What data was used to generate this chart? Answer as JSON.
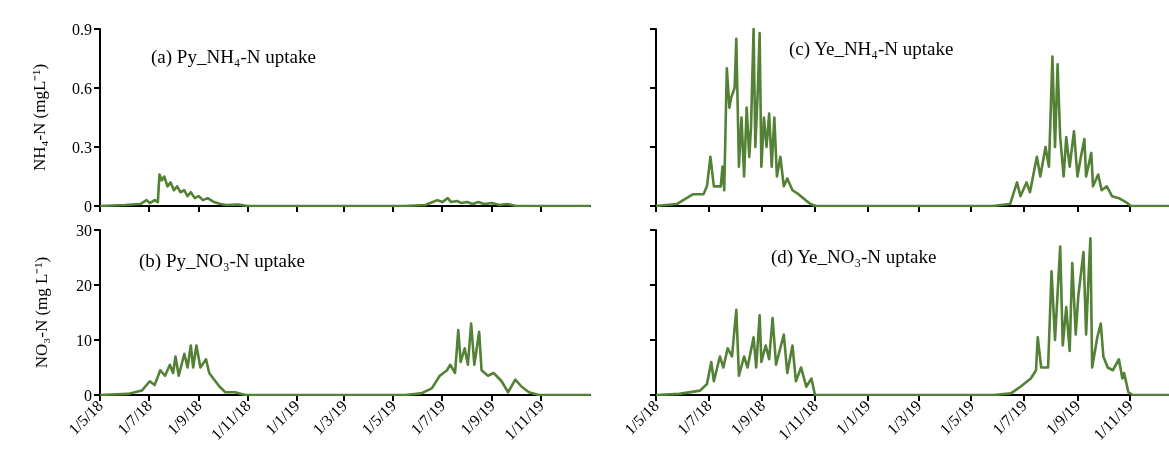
{
  "chart_data": [
    {
      "type": "line",
      "title": "(a) Py_NH₄-N uptake",
      "ylabel": "NH₄-N (mgL⁻¹)",
      "color": "#538135",
      "tick_labels": "y",
      "x": [
        "2018-05-01",
        "2018-06-01",
        "2018-06-20",
        "2018-06-28",
        "2018-07-02",
        "2018-07-08",
        "2018-07-12",
        "2018-07-14",
        "2018-07-17",
        "2018-07-20",
        "2018-07-24",
        "2018-07-28",
        "2018-08-01",
        "2018-08-05",
        "2018-08-09",
        "2018-08-14",
        "2018-08-18",
        "2018-08-22",
        "2018-08-27",
        "2018-09-01",
        "2018-09-06",
        "2018-09-12",
        "2018-09-20",
        "2018-09-28",
        "2018-10-05",
        "2018-10-20",
        "2018-11-01",
        "2019-05-15",
        "2019-06-10",
        "2019-06-25",
        "2019-07-01",
        "2019-07-08",
        "2019-07-12",
        "2019-07-20",
        "2019-07-25",
        "2019-08-01",
        "2019-08-08",
        "2019-08-15",
        "2019-08-22",
        "2019-09-01",
        "2019-09-10",
        "2019-09-20",
        "2019-10-01",
        "2020-01-01"
      ],
      "values": [
        0,
        0.005,
        0.01,
        0.03,
        0.015,
        0.03,
        0.02,
        0.16,
        0.13,
        0.15,
        0.1,
        0.12,
        0.08,
        0.1,
        0.07,
        0.08,
        0.05,
        0.07,
        0.04,
        0.05,
        0.03,
        0.04,
        0.02,
        0.01,
        0.005,
        0.008,
        0,
        0,
        0.005,
        0.03,
        0.02,
        0.04,
        0.02,
        0.025,
        0.015,
        0.02,
        0.01,
        0.02,
        0.01,
        0.015,
        0.005,
        0.01,
        0,
        0
      ],
      "xlim": [
        "2018-05-01",
        "2020-01-01"
      ],
      "xticks": [
        {
          "value": "2018-05-01",
          "label": null
        },
        {
          "value": "2018-07-01",
          "label": null
        },
        {
          "value": "2018-09-01",
          "label": null
        },
        {
          "value": "2018-11-01",
          "label": null
        },
        {
          "value": "2019-01-01",
          "label": null
        },
        {
          "value": "2019-03-01",
          "label": null
        },
        {
          "value": "2019-05-01",
          "label": null
        },
        {
          "value": "2019-07-01",
          "label": null
        },
        {
          "value": "2019-09-01",
          "label": null
        },
        {
          "value": "2019-11-01",
          "label": null
        }
      ],
      "ylim": [
        0,
        0.9
      ],
      "yticks": [
        0,
        0.3,
        0.6,
        0.9
      ]
    },
    {
      "type": "line",
      "title": "(c) Ye_NH₄-N uptake",
      "color": "#538135",
      "tick_labels": false,
      "x": [
        "2018-05-01",
        "2018-05-25",
        "2018-06-13",
        "2018-06-25",
        "2018-06-29",
        "2018-07-03",
        "2018-07-07",
        "2018-07-15",
        "2018-07-17",
        "2018-07-19",
        "2018-07-22",
        "2018-07-25",
        "2018-07-27",
        "2018-07-31",
        "2018-08-02",
        "2018-08-05",
        "2018-08-08",
        "2018-08-11",
        "2018-08-14",
        "2018-08-17",
        "2018-08-19",
        "2018-08-22",
        "2018-08-24",
        "2018-08-27",
        "2018-08-29",
        "2018-08-31",
        "2018-09-03",
        "2018-09-06",
        "2018-09-09",
        "2018-09-12",
        "2018-09-15",
        "2018-09-18",
        "2018-09-22",
        "2018-09-26",
        "2018-09-30",
        "2018-10-06",
        "2018-10-13",
        "2018-10-21",
        "2018-10-27",
        "2018-11-02",
        "2019-05-26",
        "2019-06-15",
        "2019-06-23",
        "2019-06-27",
        "2019-07-04",
        "2019-07-08",
        "2019-07-16",
        "2019-07-20",
        "2019-07-26",
        "2019-07-30",
        "2019-08-03",
        "2019-08-06",
        "2019-08-09",
        "2019-08-12",
        "2019-08-16",
        "2019-08-19",
        "2019-08-23",
        "2019-08-28",
        "2019-09-01",
        "2019-09-05",
        "2019-09-09",
        "2019-09-11",
        "2019-09-17",
        "2019-09-19",
        "2019-09-25",
        "2019-09-29",
        "2019-10-05",
        "2019-10-11",
        "2019-10-19",
        "2019-10-27",
        "2019-11-02",
        "2019-12-16"
      ],
      "values": [
        0,
        0.01,
        0.06,
        0.06,
        0.1,
        0.25,
        0.1,
        0.1,
        0.2,
        0.08,
        0.7,
        0.5,
        0.55,
        0.6,
        0.85,
        0.2,
        0.45,
        0.15,
        0.5,
        0.25,
        0.4,
        0.9,
        0.3,
        0.6,
        0.88,
        0.2,
        0.45,
        0.3,
        0.47,
        0.2,
        0.45,
        0.15,
        0.25,
        0.1,
        0.14,
        0.08,
        0.06,
        0.03,
        0.01,
        0,
        0,
        0.01,
        0.12,
        0.05,
        0.12,
        0.07,
        0.25,
        0.15,
        0.3,
        0.2,
        0.76,
        0.3,
        0.72,
        0.35,
        0.15,
        0.35,
        0.2,
        0.38,
        0.15,
        0.25,
        0.34,
        0.15,
        0.27,
        0.1,
        0.16,
        0.08,
        0.1,
        0.05,
        0.04,
        0.02,
        0,
        0
      ],
      "xlim": [
        "2018-05-01",
        "2019-12-16"
      ],
      "xticks": [
        {
          "value": "2018-05-01",
          "label": null
        },
        {
          "value": "2018-07-01",
          "label": null
        },
        {
          "value": "2018-09-01",
          "label": null
        },
        {
          "value": "2018-11-01",
          "label": null
        },
        {
          "value": "2019-01-01",
          "label": null
        },
        {
          "value": "2019-03-01",
          "label": null
        },
        {
          "value": "2019-05-01",
          "label": null
        },
        {
          "value": "2019-07-01",
          "label": null
        },
        {
          "value": "2019-09-01",
          "label": null
        },
        {
          "value": "2019-11-01",
          "label": null
        }
      ],
      "ylim": [
        0,
        0.9
      ],
      "yticks": [
        0,
        0.3,
        0.6,
        0.9
      ]
    },
    {
      "type": "line",
      "title": "(b) Py_NO₃-N uptake",
      "ylabel": "NO₃-N (mg L⁻¹)",
      "color": "#538135",
      "x": [
        "2018-05-01",
        "2018-06-05",
        "2018-06-22",
        "2018-07-02",
        "2018-07-08",
        "2018-07-15",
        "2018-07-21",
        "2018-07-27",
        "2018-07-31",
        "2018-08-03",
        "2018-08-07",
        "2018-08-14",
        "2018-08-18",
        "2018-08-22",
        "2018-08-25",
        "2018-08-29",
        "2018-09-03",
        "2018-09-10",
        "2018-09-14",
        "2018-09-19",
        "2018-09-27",
        "2018-10-04",
        "2018-10-16",
        "2018-10-29",
        "2019-05-16",
        "2019-06-05",
        "2019-06-18",
        "2019-06-28",
        "2019-07-07",
        "2019-07-11",
        "2019-07-17",
        "2019-07-21",
        "2019-07-24",
        "2019-07-29",
        "2019-08-02",
        "2019-08-06",
        "2019-08-10",
        "2019-08-16",
        "2019-08-19",
        "2019-08-27",
        "2019-09-03",
        "2019-09-13",
        "2019-09-21",
        "2019-09-30",
        "2019-10-08",
        "2019-10-17",
        "2019-10-29",
        "2020-01-01"
      ],
      "values": [
        0,
        0.2,
        0.8,
        2.5,
        1.8,
        4.5,
        3.5,
        5.5,
        4,
        7,
        3.5,
        7.5,
        5,
        9,
        5,
        9,
        5,
        6.5,
        4,
        3,
        1.5,
        0.5,
        0.5,
        0,
        0,
        0.3,
        1.2,
        3.5,
        4.5,
        5.5,
        4,
        11.8,
        6,
        8.5,
        5.5,
        13,
        5.5,
        11.5,
        4.5,
        3.5,
        4,
        2.5,
        0.5,
        2.8,
        1.5,
        0.5,
        0,
        0
      ],
      "xlim": [
        "2018-05-01",
        "2020-01-01"
      ],
      "xticks": [
        {
          "value": "2018-05-01",
          "label": "1/5/18"
        },
        {
          "value": "2018-07-01",
          "label": "1/7/18"
        },
        {
          "value": "2018-09-01",
          "label": "1/9/18"
        },
        {
          "value": "2018-11-01",
          "label": "1/11/18"
        },
        {
          "value": "2019-01-01",
          "label": "1/1/19"
        },
        {
          "value": "2019-03-01",
          "label": "1/3/19"
        },
        {
          "value": "2019-05-01",
          "label": "1/5/19"
        },
        {
          "value": "2019-07-01",
          "label": "1/7/19"
        },
        {
          "value": "2019-09-01",
          "label": "1/9/19"
        },
        {
          "value": "2019-11-01",
          "label": "1/11/19"
        }
      ],
      "ylim": [
        0,
        30
      ],
      "yticks": [
        0,
        10,
        20,
        30
      ]
    },
    {
      "type": "line",
      "title": "(d) Ye_NO₃-N uptake",
      "color": "#538135",
      "tick_labels": "x",
      "x": [
        "2018-05-01",
        "2018-05-28",
        "2018-06-21",
        "2018-06-29",
        "2018-07-04",
        "2018-07-07",
        "2018-07-14",
        "2018-07-18",
        "2018-07-23",
        "2018-07-28",
        "2018-08-02",
        "2018-08-05",
        "2018-08-11",
        "2018-08-15",
        "2018-08-22",
        "2018-08-25",
        "2018-08-29",
        "2018-08-31",
        "2018-09-05",
        "2018-09-09",
        "2018-09-13",
        "2018-09-17",
        "2018-09-26",
        "2018-09-30",
        "2018-10-06",
        "2018-10-10",
        "2018-10-16",
        "2018-10-22",
        "2018-10-28",
        "2018-11-01",
        "2019-05-27",
        "2019-06-16",
        "2019-06-27",
        "2019-07-09",
        "2019-07-15",
        "2019-07-17",
        "2019-07-21",
        "2019-07-29",
        "2019-08-02",
        "2019-08-06",
        "2019-08-12",
        "2019-08-15",
        "2019-08-19",
        "2019-08-23",
        "2019-08-26",
        "2019-08-30",
        "2019-09-02",
        "2019-09-08",
        "2019-09-11",
        "2019-09-14",
        "2019-09-16",
        "2019-09-18",
        "2019-09-24",
        "2019-09-28",
        "2019-10-01",
        "2019-10-06",
        "2019-10-12",
        "2019-10-19",
        "2019-10-23",
        "2019-10-25",
        "2019-10-30",
        "2019-11-04",
        "2019-12-16"
      ],
      "values": [
        0,
        0.2,
        0.8,
        2,
        6,
        2.5,
        7,
        5,
        8.5,
        7,
        15.5,
        3.5,
        7,
        5,
        10.5,
        5,
        14.5,
        6,
        9,
        6.5,
        14,
        5.5,
        11,
        4,
        9,
        2.5,
        5,
        1.5,
        3,
        0,
        0,
        0.3,
        1.5,
        3,
        4.5,
        10.5,
        5,
        5,
        22.5,
        10,
        27,
        9,
        16,
        8,
        24,
        11,
        18,
        26,
        11,
        22,
        28.5,
        5,
        10.5,
        13,
        7,
        5,
        4.5,
        6.5,
        3,
        4,
        0.5,
        0,
        0
      ],
      "xlim": [
        "2018-05-01",
        "2019-12-16"
      ],
      "xticks": [
        {
          "value": "2018-05-01",
          "label": "1/5/18"
        },
        {
          "value": "2018-07-01",
          "label": "1/7/18"
        },
        {
          "value": "2018-09-01",
          "label": "1/9/18"
        },
        {
          "value": "2018-11-01",
          "label": "1/11/18"
        },
        {
          "value": "2019-01-01",
          "label": "1/1/19"
        },
        {
          "value": "2019-03-01",
          "label": "1/3/19"
        },
        {
          "value": "2019-05-01",
          "label": "1/5/19"
        },
        {
          "value": "2019-07-01",
          "label": "1/7/19"
        },
        {
          "value": "2019-09-01",
          "label": "1/9/19"
        },
        {
          "value": "2019-11-01",
          "label": "1/11/19"
        }
      ],
      "ylim": [
        0,
        30
      ],
      "yticks": [
        0,
        10,
        20,
        30
      ]
    }
  ]
}
